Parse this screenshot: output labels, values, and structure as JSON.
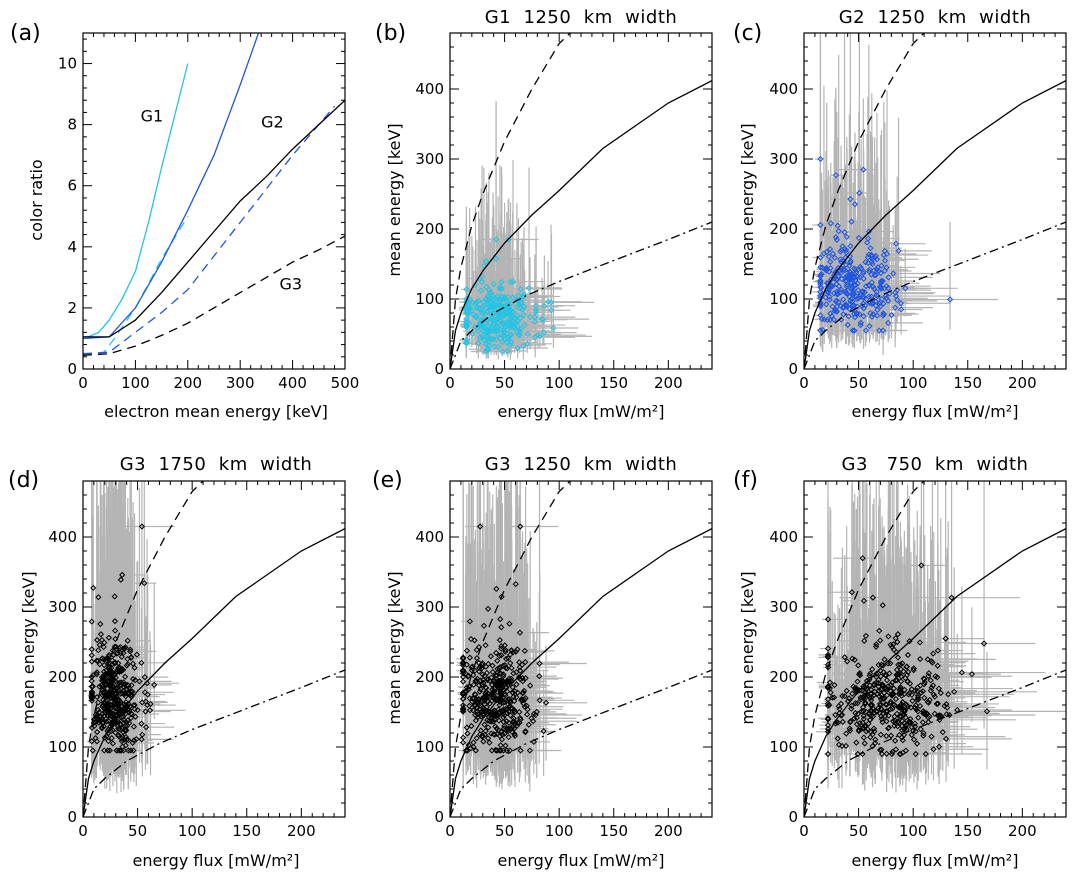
{
  "figure_labels": {
    "a": "(a)",
    "b": "(b)",
    "c": "(c)",
    "d": "(d)",
    "e": "(e)",
    "f": "(f)"
  },
  "colors": {
    "g1": "#22c5e6",
    "g2": "#1f55e0",
    "g3": "#000000",
    "errorbar": "#b4b4b4"
  },
  "chart_data": [
    {
      "id": "a",
      "type": "line",
      "title": "",
      "xlabel": "electron mean energy [keV]",
      "ylabel": "color ratio",
      "xlim": [
        0,
        500
      ],
      "ylim": [
        0,
        11
      ],
      "xticks": [
        0,
        100,
        200,
        300,
        400,
        500
      ],
      "yticks": [
        0,
        2,
        4,
        6,
        8,
        10
      ],
      "series": [
        {
          "name": "G1",
          "color": "#22c5e6",
          "dash": "solid",
          "width": 1.3,
          "x": [
            0,
            10,
            30,
            50,
            75,
            100,
            125,
            150,
            175,
            200
          ],
          "y": [
            1.05,
            1.05,
            1.2,
            1.6,
            2.3,
            3.2,
            4.8,
            6.6,
            8.3,
            10.0
          ]
        },
        {
          "name": "",
          "color": "#22c5e6",
          "dash": "dash",
          "width": 1.3,
          "x": [
            0,
            20,
            40,
            60,
            80,
            100,
            125,
            150,
            175,
            200
          ],
          "y": [
            0.5,
            0.5,
            0.55,
            1.0,
            1.5,
            2.0,
            2.8,
            3.6,
            4.3,
            5.0
          ]
        },
        {
          "name": "G2",
          "color": "#1f55e0",
          "dash": "solid",
          "width": 1.3,
          "x": [
            0,
            50,
            100,
            150,
            200,
            250,
            300,
            335
          ],
          "y": [
            1.0,
            1.05,
            2.0,
            3.5,
            5.2,
            7.0,
            9.3,
            11.0
          ]
        },
        {
          "name": "",
          "color": "#1f55e0",
          "dash": "dash",
          "width": 1.3,
          "x": [
            0,
            50,
            100,
            150,
            200,
            250,
            300,
            350,
            400,
            450,
            480
          ],
          "y": [
            0.5,
            0.55,
            1.2,
            1.85,
            2.6,
            3.7,
            4.8,
            5.9,
            7.0,
            8.0,
            8.6
          ]
        },
        {
          "name": "",
          "color": "#000000",
          "dash": "solid",
          "width": 1.3,
          "x": [
            0,
            50,
            100,
            150,
            200,
            250,
            300,
            350,
            400,
            450,
            500
          ],
          "y": [
            1.05,
            1.05,
            1.6,
            2.5,
            3.5,
            4.5,
            5.5,
            6.3,
            7.2,
            8.0,
            8.8
          ]
        },
        {
          "name": "G3",
          "color": "#000000",
          "dash": "dash",
          "width": 1.3,
          "x": [
            0,
            50,
            100,
            150,
            200,
            250,
            300,
            350,
            400,
            450,
            500
          ],
          "y": [
            0.45,
            0.5,
            0.75,
            1.1,
            1.5,
            2.0,
            2.5,
            3.0,
            3.5,
            3.9,
            4.35
          ]
        }
      ],
      "annotations": [
        {
          "text": "G1",
          "x": 110,
          "y": 8.1,
          "color": "#22c5e6"
        },
        {
          "text": "G2",
          "x": 340,
          "y": 7.9,
          "color": "#1f55e0"
        },
        {
          "text": "G3",
          "x": 375,
          "y": 2.6,
          "color": "#000000"
        }
      ]
    },
    {
      "id": "b",
      "type": "scatter",
      "title": "G1  1250  km  width",
      "xlabel": "energy flux [mW/m²]",
      "ylabel": "mean energy [keV]",
      "xlim": [
        0,
        240
      ],
      "ylim": [
        0,
        480
      ],
      "xticks": [
        0,
        50,
        100,
        150,
        200
      ],
      "yticks": [
        0,
        100,
        200,
        300,
        400
      ],
      "marker_color": "#22c5e6",
      "cluster": {
        "count": 320,
        "x_mean": 45,
        "x_sd": 18,
        "x_min": 15,
        "x_max": 145,
        "y_mean": 72,
        "y_sd": 22,
        "y_min": 25,
        "y_max": 185
      },
      "curves": {
        "solid": {
          "x": [
            0,
            5,
            10,
            20,
            30,
            50,
            75,
            100,
            140,
            200,
            240
          ],
          "y": [
            0,
            55,
            80,
            115,
            140,
            180,
            220,
            255,
            315,
            380,
            412
          ]
        },
        "dash": {
          "x": [
            0,
            5,
            10,
            20,
            30,
            50,
            75,
            100,
            120
          ],
          "y": [
            0,
            100,
            145,
            205,
            250,
            325,
            400,
            465,
            495
          ]
        },
        "dashdot": {
          "x": [
            0,
            10,
            20,
            40,
            70,
            100,
            150,
            200,
            240
          ],
          "y": [
            0,
            40,
            55,
            80,
            105,
            125,
            155,
            185,
            210
          ]
        }
      }
    },
    {
      "id": "c",
      "type": "scatter",
      "title": "G2  1250  km  width",
      "xlabel": "energy flux [mW/m²]",
      "ylabel": "mean energy [keV]",
      "xlim": [
        0,
        240
      ],
      "ylim": [
        0,
        480
      ],
      "xticks": [
        0,
        50,
        100,
        150,
        200
      ],
      "yticks": [
        0,
        100,
        200,
        300,
        400
      ],
      "marker_color": "#1f55e0",
      "cluster": {
        "count": 320,
        "x_mean": 45,
        "x_sd": 20,
        "x_min": 15,
        "x_max": 145,
        "y_mean": 118,
        "y_sd": 30,
        "y_min": 55,
        "y_max": 300
      },
      "curves": {
        "solid": {
          "x": [
            0,
            5,
            10,
            20,
            30,
            50,
            75,
            100,
            140,
            200,
            240
          ],
          "y": [
            0,
            55,
            80,
            115,
            140,
            180,
            220,
            255,
            315,
            380,
            412
          ]
        },
        "dash": {
          "x": [
            0,
            5,
            10,
            20,
            30,
            50,
            75,
            100,
            120
          ],
          "y": [
            0,
            100,
            145,
            205,
            250,
            325,
            400,
            465,
            495
          ]
        },
        "dashdot": {
          "x": [
            0,
            10,
            20,
            40,
            70,
            100,
            150,
            200,
            240
          ],
          "y": [
            0,
            40,
            55,
            80,
            105,
            125,
            155,
            185,
            210
          ]
        }
      }
    },
    {
      "id": "d",
      "type": "scatter",
      "title": "G3  1750  km  width",
      "xlabel": "energy flux [mW/m²]",
      "ylabel": "mean energy [keV]",
      "xlim": [
        0,
        240
      ],
      "ylim": [
        0,
        480
      ],
      "xticks": [
        0,
        50,
        100,
        150,
        200
      ],
      "yticks": [
        0,
        100,
        200,
        300,
        400
      ],
      "marker_color": "#000000",
      "cluster": {
        "count": 420,
        "x_mean": 30,
        "x_sd": 12,
        "x_min": 8,
        "x_max": 100,
        "y_mean": 168,
        "y_sd": 38,
        "y_min": 95,
        "y_max": 415
      },
      "curves": {
        "solid": {
          "x": [
            0,
            5,
            10,
            20,
            30,
            50,
            75,
            100,
            140,
            200,
            240
          ],
          "y": [
            0,
            55,
            80,
            115,
            140,
            180,
            220,
            255,
            315,
            380,
            412
          ]
        },
        "dash": {
          "x": [
            0,
            5,
            10,
            20,
            30,
            50,
            75,
            100,
            120
          ],
          "y": [
            0,
            100,
            145,
            205,
            250,
            325,
            400,
            465,
            495
          ]
        },
        "dashdot": {
          "x": [
            0,
            10,
            20,
            40,
            70,
            100,
            150,
            200,
            240
          ],
          "y": [
            0,
            40,
            55,
            80,
            105,
            125,
            155,
            185,
            210
          ]
        }
      }
    },
    {
      "id": "e",
      "type": "scatter",
      "title": "G3  1250  km  width",
      "xlabel": "energy flux [mW/m²]",
      "ylabel": "mean energy [keV]",
      "xlim": [
        0,
        240
      ],
      "ylim": [
        0,
        480
      ],
      "xticks": [
        0,
        50,
        100,
        150,
        200
      ],
      "yticks": [
        0,
        100,
        200,
        300,
        400
      ],
      "marker_color": "#000000",
      "cluster": {
        "count": 420,
        "x_mean": 42,
        "x_sd": 17,
        "x_min": 12,
        "x_max": 145,
        "y_mean": 165,
        "y_sd": 38,
        "y_min": 95,
        "y_max": 415
      },
      "curves": {
        "solid": {
          "x": [
            0,
            5,
            10,
            20,
            30,
            50,
            75,
            100,
            140,
            200,
            240
          ],
          "y": [
            0,
            55,
            80,
            115,
            140,
            180,
            220,
            255,
            315,
            380,
            412
          ]
        },
        "dash": {
          "x": [
            0,
            5,
            10,
            20,
            30,
            50,
            75,
            100,
            120
          ],
          "y": [
            0,
            100,
            145,
            205,
            250,
            325,
            400,
            465,
            495
          ]
        },
        "dashdot": {
          "x": [
            0,
            10,
            20,
            40,
            70,
            100,
            150,
            200,
            240
          ],
          "y": [
            0,
            40,
            55,
            80,
            105,
            125,
            155,
            185,
            210
          ]
        }
      }
    },
    {
      "id": "f",
      "type": "scatter",
      "title": "G3   750  km  width",
      "xlabel": "energy flux [mW/m²]",
      "ylabel": "mean energy [keV]",
      "xlim": [
        0,
        240
      ],
      "ylim": [
        0,
        480
      ],
      "xticks": [
        0,
        50,
        100,
        150,
        200
      ],
      "yticks": [
        0,
        100,
        200,
        300,
        400
      ],
      "marker_color": "#000000",
      "cluster": {
        "count": 450,
        "x_mean": 75,
        "x_sd": 30,
        "x_min": 22,
        "x_max": 240,
        "y_mean": 165,
        "y_sd": 38,
        "y_min": 90,
        "y_max": 415
      },
      "curves": {
        "solid": {
          "x": [
            0,
            5,
            10,
            20,
            30,
            50,
            75,
            100,
            140,
            200,
            240
          ],
          "y": [
            0,
            55,
            80,
            115,
            140,
            180,
            220,
            255,
            315,
            380,
            412
          ]
        },
        "dash": {
          "x": [
            0,
            5,
            10,
            20,
            30,
            50,
            75,
            100,
            120
          ],
          "y": [
            0,
            100,
            145,
            205,
            250,
            325,
            400,
            465,
            495
          ]
        },
        "dashdot": {
          "x": [
            0,
            10,
            20,
            40,
            70,
            100,
            150,
            200,
            240
          ],
          "y": [
            0,
            40,
            55,
            80,
            105,
            125,
            155,
            185,
            210
          ]
        }
      }
    }
  ]
}
